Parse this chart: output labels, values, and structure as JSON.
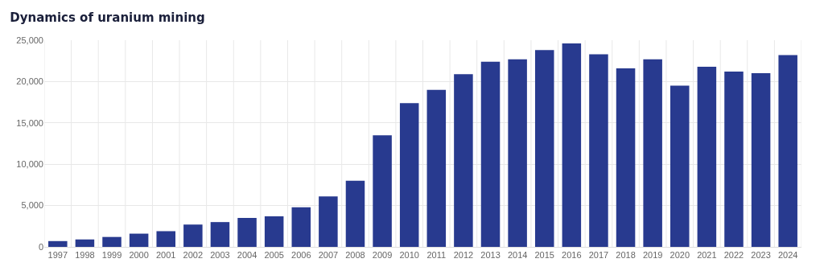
{
  "chart_data": {
    "type": "bar",
    "title": "Dynamics of uranium mining",
    "categories": [
      "1997",
      "1998",
      "1999",
      "2000",
      "2001",
      "2002",
      "2003",
      "2004",
      "2005",
      "2006",
      "2007",
      "2008",
      "2009",
      "2010",
      "2011",
      "2012",
      "2013",
      "2014",
      "2015",
      "2016",
      "2017",
      "2018",
      "2019",
      "2020",
      "2021",
      "2022",
      "2023",
      "2024"
    ],
    "values": [
      700,
      900,
      1200,
      1600,
      1900,
      2700,
      3000,
      3500,
      3700,
      4800,
      6100,
      8000,
      13500,
      17400,
      19000,
      20900,
      22400,
      22700,
      23800,
      24600,
      23300,
      21600,
      22700,
      19500,
      21800,
      21200,
      21000,
      23200
    ],
    "color": "#283a8f",
    "ylim": [
      0,
      25000
    ],
    "yticks": [
      0,
      {
        "value": 5000,
        "label": "5,000"
      },
      {
        "value": 10000,
        "label": "10,000"
      },
      {
        "value": 15000,
        "label": "15,000"
      },
      {
        "value": 20000,
        "label": "20,000"
      },
      {
        "value": 25000,
        "label": "25,000"
      }
    ],
    "grid": true
  }
}
